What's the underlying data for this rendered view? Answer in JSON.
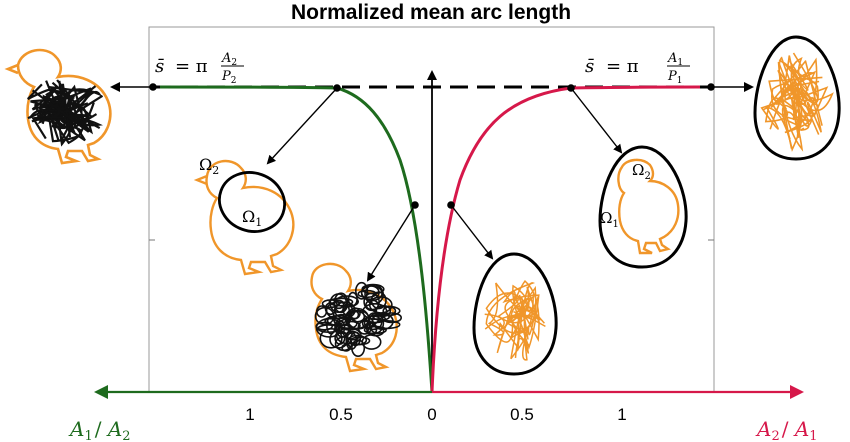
{
  "title": "Normalized mean arc length",
  "formula_left": {
    "lhs": "s̄",
    "eq": "= π",
    "num": "A",
    "num_sub": "2",
    "den": "P",
    "den_sub": "2"
  },
  "formula_right": {
    "lhs": "s̄",
    "eq": "= π",
    "num": "A",
    "num_sub": "1",
    "den": "P",
    "den_sub": "1"
  },
  "x_ticks_left": [
    "1",
    "0.5",
    "0"
  ],
  "x_ticks_right": [
    "0.5",
    "1"
  ],
  "axis_label_left": {
    "a": "A",
    "a_sub": "1",
    "sep": "/ ",
    "b": "A",
    "b_sub": "2"
  },
  "axis_label_right": {
    "a": "A",
    "a_sub": "2",
    "sep": "/ ",
    "b": "A",
    "b_sub": "1"
  },
  "omega_chick": {
    "outer": "Ω",
    "outer_sub": "2",
    "inner": "Ω",
    "inner_sub": "1"
  },
  "omega_egg": {
    "outer": "Ω",
    "outer_sub": "2",
    "inner": "Ω",
    "inner_sub": "1"
  },
  "colors": {
    "green": "#1e6b1e",
    "red": "#d6184a",
    "orange": "#f0962a",
    "black": "#000000"
  },
  "icons": [
    "chick-scribble",
    "chick-outline-with-ellipse",
    "chick-with-loops",
    "egg-scribble",
    "egg-with-chick-outline",
    "egg-sparse-scribble"
  ]
}
